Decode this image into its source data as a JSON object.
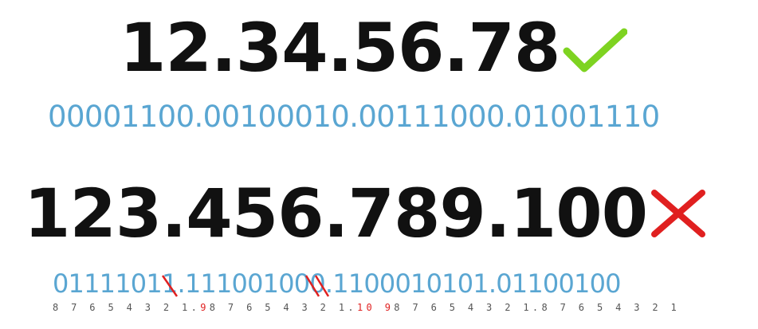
{
  "valid_example": {
    "ip": "12.34.56.78",
    "binary": "00001100.00100010.00111000.01001110",
    "verdict_icon": "check-icon",
    "verdict_color": "#7ed321"
  },
  "invalid_example": {
    "ip": "123.456.789.100",
    "binary": "01111011.111001000.1100010101.01100100",
    "verdict_icon": "cross-icon",
    "verdict_color": "#e02020",
    "place_values": {
      "oct1": "8 7 6 5 4 3 2 1",
      "sep1": ".",
      "oct2_overflow": "9",
      "oct2": "8 7 6 5 4 3 2 1",
      "sep2": ".",
      "oct3_overflow": "10 9",
      "oct3": "8 7 6 5 4 3 2 1",
      "sep3": ".",
      "oct4": "8 7 6 5 4 3 2 1"
    }
  },
  "colors": {
    "ip_text": "#111111",
    "binary_text": "#5aa6d2",
    "overflow_mark": "#e02020"
  }
}
